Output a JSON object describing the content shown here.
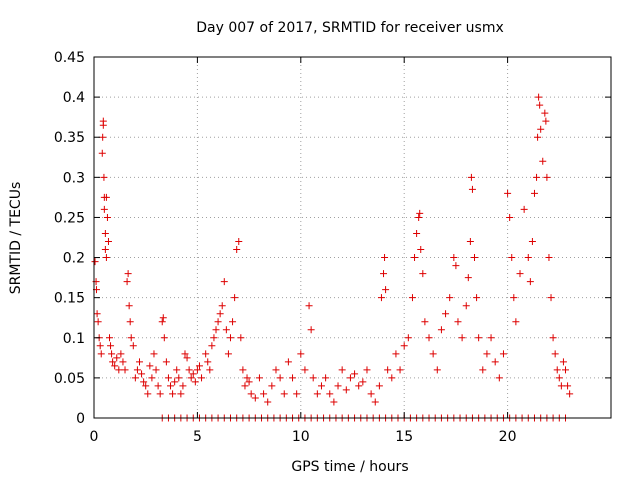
{
  "chart_data": {
    "type": "scatter",
    "title": "Day 007 of 2017, SRMTID for receiver usmx",
    "xlabel": "GPS time / hours",
    "ylabel": "SRMTID / TECUs",
    "xlim": [
      0,
      25
    ],
    "ylim": [
      0,
      0.45
    ],
    "xticks": [
      0,
      5,
      10,
      15,
      20
    ],
    "yticks": [
      0,
      0.05,
      0.1,
      0.15,
      0.2,
      0.25,
      0.3,
      0.35,
      0.4,
      0.45
    ],
    "xtick_labels": [
      "0",
      "5",
      "10",
      "15",
      "20"
    ],
    "ytick_labels": [
      "0",
      "0.05",
      "0.1",
      "0.15",
      "0.2",
      "0.25",
      "0.3",
      "0.35",
      "0.4",
      "0.45"
    ],
    "grid": true,
    "marker": "+",
    "color": "#dd0000",
    "series": [
      {
        "name": "SRMTID",
        "points": [
          [
            0.05,
            0.195
          ],
          [
            0.1,
            0.17
          ],
          [
            0.12,
            0.16
          ],
          [
            0.15,
            0.13
          ],
          [
            0.2,
            0.12
          ],
          [
            0.25,
            0.1
          ],
          [
            0.3,
            0.09
          ],
          [
            0.35,
            0.08
          ],
          [
            0.4,
            0.33
          ],
          [
            0.42,
            0.35
          ],
          [
            0.45,
            0.37
          ],
          [
            0.45,
            0.365
          ],
          [
            0.48,
            0.3
          ],
          [
            0.5,
            0.275
          ],
          [
            0.5,
            0.26
          ],
          [
            0.55,
            0.23
          ],
          [
            0.55,
            0.21
          ],
          [
            0.6,
            0.2
          ],
          [
            0.6,
            0.275
          ],
          [
            0.65,
            0.25
          ],
          [
            0.7,
            0.22
          ],
          [
            0.75,
            0.1
          ],
          [
            0.8,
            0.09
          ],
          [
            0.85,
            0.08
          ],
          [
            0.9,
            0.07
          ],
          [
            1.0,
            0.065
          ],
          [
            1.1,
            0.075
          ],
          [
            1.2,
            0.06
          ],
          [
            1.3,
            0.08
          ],
          [
            1.4,
            0.07
          ],
          [
            1.5,
            0.06
          ],
          [
            1.6,
            0.17
          ],
          [
            1.65,
            0.18
          ],
          [
            1.7,
            0.14
          ],
          [
            1.75,
            0.12
          ],
          [
            1.8,
            0.1
          ],
          [
            1.9,
            0.09
          ],
          [
            2.0,
            0.05
          ],
          [
            2.1,
            0.06
          ],
          [
            2.2,
            0.07
          ],
          [
            2.3,
            0.055
          ],
          [
            2.4,
            0.045
          ],
          [
            2.5,
            0.04
          ],
          [
            2.6,
            0.03
          ],
          [
            2.7,
            0.065
          ],
          [
            2.8,
            0.05
          ],
          [
            2.9,
            0.08
          ],
          [
            3.0,
            0.06
          ],
          [
            3.1,
            0.04
          ],
          [
            3.2,
            0.03
          ],
          [
            3.3,
            0.12
          ],
          [
            3.35,
            0.125
          ],
          [
            3.4,
            0.1
          ],
          [
            3.5,
            0.07
          ],
          [
            3.6,
            0.05
          ],
          [
            3.7,
            0.04
          ],
          [
            3.8,
            0.03
          ],
          [
            3.9,
            0.045
          ],
          [
            4.0,
            0.06
          ],
          [
            4.1,
            0.05
          ],
          [
            4.2,
            0.03
          ],
          [
            4.3,
            0.04
          ],
          [
            4.4,
            0.08
          ],
          [
            4.5,
            0.075
          ],
          [
            4.6,
            0.06
          ],
          [
            4.7,
            0.05
          ],
          [
            4.8,
            0.055
          ],
          [
            4.9,
            0.045
          ],
          [
            5.0,
            0.06
          ],
          [
            5.1,
            0.065
          ],
          [
            5.2,
            0.05
          ],
          [
            5.4,
            0.08
          ],
          [
            5.5,
            0.07
          ],
          [
            5.6,
            0.06
          ],
          [
            5.7,
            0.09
          ],
          [
            5.8,
            0.1
          ],
          [
            5.9,
            0.11
          ],
          [
            6.0,
            0.12
          ],
          [
            6.1,
            0.13
          ],
          [
            6.2,
            0.14
          ],
          [
            6.3,
            0.17
          ],
          [
            6.4,
            0.11
          ],
          [
            6.5,
            0.08
          ],
          [
            6.6,
            0.1
          ],
          [
            6.7,
            0.12
          ],
          [
            6.8,
            0.15
          ],
          [
            6.9,
            0.21
          ],
          [
            7.0,
            0.22
          ],
          [
            7.1,
            0.1
          ],
          [
            7.2,
            0.06
          ],
          [
            7.3,
            0.04
          ],
          [
            7.4,
            0.05
          ],
          [
            7.5,
            0.045
          ],
          [
            7.6,
            0.03
          ],
          [
            7.8,
            0.025
          ],
          [
            8.0,
            0.05
          ],
          [
            8.2,
            0.03
          ],
          [
            8.4,
            0.02
          ],
          [
            8.6,
            0.04
          ],
          [
            8.8,
            0.06
          ],
          [
            9.0,
            0.05
          ],
          [
            9.2,
            0.03
          ],
          [
            9.4,
            0.07
          ],
          [
            9.6,
            0.05
          ],
          [
            9.8,
            0.03
          ],
          [
            10.0,
            0.08
          ],
          [
            10.2,
            0.06
          ],
          [
            10.4,
            0.14
          ],
          [
            10.5,
            0.11
          ],
          [
            10.6,
            0.05
          ],
          [
            10.8,
            0.03
          ],
          [
            11.0,
            0.04
          ],
          [
            11.2,
            0.05
          ],
          [
            11.4,
            0.03
          ],
          [
            11.6,
            0.02
          ],
          [
            11.8,
            0.04
          ],
          [
            12.0,
            0.06
          ],
          [
            12.2,
            0.035
          ],
          [
            12.4,
            0.05
          ],
          [
            12.6,
            0.055
          ],
          [
            12.8,
            0.04
          ],
          [
            13.0,
            0.045
          ],
          [
            13.2,
            0.06
          ],
          [
            13.4,
            0.03
          ],
          [
            13.6,
            0.02
          ],
          [
            13.8,
            0.04
          ],
          [
            13.9,
            0.15
          ],
          [
            14.0,
            0.18
          ],
          [
            14.05,
            0.2
          ],
          [
            14.1,
            0.16
          ],
          [
            14.2,
            0.06
          ],
          [
            14.4,
            0.05
          ],
          [
            14.6,
            0.08
          ],
          [
            14.8,
            0.06
          ],
          [
            15.0,
            0.09
          ],
          [
            15.2,
            0.1
          ],
          [
            15.4,
            0.15
          ],
          [
            15.5,
            0.2
          ],
          [
            15.6,
            0.23
          ],
          [
            15.7,
            0.25
          ],
          [
            15.75,
            0.255
          ],
          [
            15.8,
            0.21
          ],
          [
            15.9,
            0.18
          ],
          [
            16.0,
            0.12
          ],
          [
            16.2,
            0.1
          ],
          [
            16.4,
            0.08
          ],
          [
            16.6,
            0.06
          ],
          [
            16.8,
            0.11
          ],
          [
            17.0,
            0.13
          ],
          [
            17.2,
            0.15
          ],
          [
            17.4,
            0.2
          ],
          [
            17.5,
            0.19
          ],
          [
            17.6,
            0.12
          ],
          [
            17.8,
            0.1
          ],
          [
            18.0,
            0.14
          ],
          [
            18.1,
            0.175
          ],
          [
            18.2,
            0.22
          ],
          [
            18.25,
            0.3
          ],
          [
            18.3,
            0.285
          ],
          [
            18.4,
            0.2
          ],
          [
            18.5,
            0.15
          ],
          [
            18.6,
            0.1
          ],
          [
            18.8,
            0.06
          ],
          [
            19.0,
            0.08
          ],
          [
            19.2,
            0.1
          ],
          [
            19.4,
            0.07
          ],
          [
            19.6,
            0.05
          ],
          [
            19.8,
            0.08
          ],
          [
            20.0,
            0.28
          ],
          [
            20.1,
            0.25
          ],
          [
            20.2,
            0.2
          ],
          [
            20.3,
            0.15
          ],
          [
            20.4,
            0.12
          ],
          [
            20.6,
            0.18
          ],
          [
            20.8,
            0.26
          ],
          [
            21.0,
            0.2
          ],
          [
            21.1,
            0.17
          ],
          [
            21.2,
            0.22
          ],
          [
            21.3,
            0.28
          ],
          [
            21.4,
            0.3
          ],
          [
            21.45,
            0.35
          ],
          [
            21.5,
            0.4
          ],
          [
            21.55,
            0.39
          ],
          [
            21.6,
            0.36
          ],
          [
            21.7,
            0.32
          ],
          [
            21.8,
            0.38
          ],
          [
            21.85,
            0.37
          ],
          [
            21.9,
            0.3
          ],
          [
            22.0,
            0.2
          ],
          [
            22.1,
            0.15
          ],
          [
            22.2,
            0.1
          ],
          [
            22.3,
            0.08
          ],
          [
            22.4,
            0.06
          ],
          [
            22.5,
            0.05
          ],
          [
            22.6,
            0.04
          ],
          [
            22.7,
            0.07
          ],
          [
            22.8,
            0.06
          ],
          [
            22.9,
            0.04
          ],
          [
            23.0,
            0.03
          ],
          [
            3.3,
            0.0
          ],
          [
            3.6,
            0.0
          ],
          [
            3.9,
            0.0
          ],
          [
            4.2,
            0.0
          ],
          [
            4.5,
            0.0
          ],
          [
            4.8,
            0.0
          ],
          [
            5.1,
            0.0
          ],
          [
            5.4,
            0.0
          ],
          [
            5.7,
            0.0
          ],
          [
            6.0,
            0.0
          ],
          [
            6.3,
            0.0
          ],
          [
            6.6,
            0.0
          ],
          [
            6.9,
            0.0
          ],
          [
            7.2,
            0.0
          ],
          [
            7.5,
            0.0
          ],
          [
            7.8,
            0.0
          ],
          [
            8.1,
            0.0
          ],
          [
            8.4,
            0.0
          ],
          [
            8.7,
            0.0
          ],
          [
            9.0,
            0.0
          ],
          [
            9.3,
            0.0
          ],
          [
            9.6,
            0.0
          ],
          [
            9.9,
            0.0
          ],
          [
            10.2,
            0.0
          ],
          [
            10.5,
            0.0
          ],
          [
            10.8,
            0.0
          ],
          [
            11.1,
            0.0
          ],
          [
            11.4,
            0.0
          ],
          [
            11.7,
            0.0
          ],
          [
            12.0,
            0.0
          ],
          [
            12.3,
            0.0
          ],
          [
            12.6,
            0.0
          ],
          [
            12.9,
            0.0
          ],
          [
            13.2,
            0.0
          ],
          [
            13.5,
            0.0
          ],
          [
            13.8,
            0.0
          ],
          [
            14.1,
            0.0
          ],
          [
            14.4,
            0.0
          ],
          [
            14.7,
            0.0
          ],
          [
            15.0,
            0.0
          ],
          [
            15.3,
            0.0
          ],
          [
            15.6,
            0.0
          ],
          [
            15.9,
            0.0
          ],
          [
            16.2,
            0.0
          ],
          [
            16.5,
            0.0
          ],
          [
            16.8,
            0.0
          ],
          [
            17.1,
            0.0
          ],
          [
            17.4,
            0.0
          ],
          [
            17.7,
            0.0
          ],
          [
            18.0,
            0.0
          ],
          [
            18.3,
            0.0
          ],
          [
            18.6,
            0.0
          ],
          [
            18.9,
            0.0
          ],
          [
            19.2,
            0.0
          ],
          [
            19.5,
            0.0
          ],
          [
            19.8,
            0.0
          ],
          [
            20.1,
            0.0
          ],
          [
            20.4,
            0.0
          ],
          [
            20.7,
            0.0
          ],
          [
            21.0,
            0.0
          ],
          [
            21.3,
            0.0
          ],
          [
            21.6,
            0.0
          ],
          [
            21.9,
            0.0
          ],
          [
            22.2,
            0.0
          ],
          [
            22.5,
            0.0
          ],
          [
            22.8,
            0.0
          ]
        ]
      }
    ]
  }
}
